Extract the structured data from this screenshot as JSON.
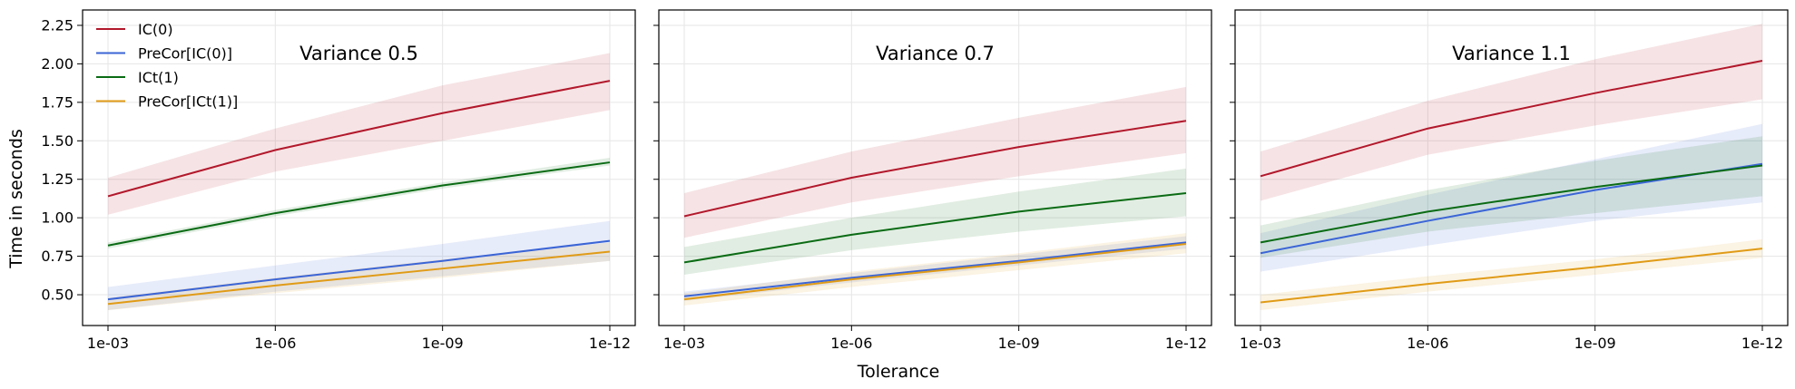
{
  "chart_data": {
    "type": "line",
    "ylabel": "Time in seconds",
    "xlabel": "Tolerance",
    "categories": [
      "1e-03",
      "1e-06",
      "1e-09",
      "1e-12"
    ],
    "ylim": [
      0.3,
      2.35
    ],
    "yticks": [
      "0.50",
      "0.75",
      "1.00",
      "1.25",
      "1.50",
      "1.75",
      "2.00",
      "2.25"
    ],
    "legend": {
      "placement": "top-left of first panel",
      "entries": [
        "IC(0)",
        "PreCor[IC(0)]",
        "ICt(1)",
        "PreCor[ICt(1)]"
      ]
    },
    "colors": {
      "IC(0)": "#b2182b",
      "PreCor[IC(0)]": "#3b65d6",
      "ICt(1)": "#0a6b14",
      "PreCor[ICt(1)]": "#e09b16"
    },
    "panels": [
      {
        "title": "Variance 0.5",
        "series": [
          {
            "name": "IC(0)",
            "values": [
              1.14,
              1.44,
              1.68,
              1.89
            ],
            "lower": [
              1.02,
              1.3,
              1.5,
              1.7
            ],
            "upper": [
              1.26,
              1.58,
              1.86,
              2.07
            ]
          },
          {
            "name": "PreCor[IC(0)]",
            "values": [
              0.47,
              0.6,
              0.72,
              0.85
            ],
            "lower": [
              0.4,
              0.52,
              0.62,
              0.72
            ],
            "upper": [
              0.55,
              0.69,
              0.83,
              0.98
            ]
          },
          {
            "name": "ICt(1)",
            "values": [
              0.82,
              1.03,
              1.21,
              1.36
            ],
            "lower": [
              0.8,
              1.01,
              1.19,
              1.34
            ],
            "upper": [
              0.84,
              1.05,
              1.23,
              1.39
            ]
          },
          {
            "name": "PreCor[ICt(1)]",
            "values": [
              0.44,
              0.56,
              0.67,
              0.78
            ],
            "lower": [
              0.4,
              0.51,
              0.61,
              0.72
            ],
            "upper": [
              0.48,
              0.61,
              0.73,
              0.84
            ]
          }
        ]
      },
      {
        "title": "Variance 0.7",
        "series": [
          {
            "name": "IC(0)",
            "values": [
              1.01,
              1.26,
              1.46,
              1.63
            ],
            "lower": [
              0.87,
              1.1,
              1.27,
              1.42
            ],
            "upper": [
              1.16,
              1.43,
              1.65,
              1.85
            ]
          },
          {
            "name": "PreCor[IC(0)]",
            "values": [
              0.49,
              0.61,
              0.72,
              0.84
            ],
            "lower": [
              0.46,
              0.58,
              0.69,
              0.8
            ],
            "upper": [
              0.52,
              0.64,
              0.76,
              0.88
            ]
          },
          {
            "name": "ICt(1)",
            "values": [
              0.71,
              0.89,
              1.04,
              1.16
            ],
            "lower": [
              0.63,
              0.79,
              0.91,
              1.01
            ],
            "upper": [
              0.81,
              1.0,
              1.17,
              1.32
            ]
          },
          {
            "name": "PreCor[ICt(1)]",
            "values": [
              0.47,
              0.6,
              0.71,
              0.83
            ],
            "lower": [
              0.43,
              0.55,
              0.66,
              0.77
            ],
            "upper": [
              0.51,
              0.65,
              0.77,
              0.9
            ]
          }
        ]
      },
      {
        "title": "Variance 1.1",
        "series": [
          {
            "name": "IC(0)",
            "values": [
              1.27,
              1.58,
              1.81,
              2.02
            ],
            "lower": [
              1.11,
              1.41,
              1.6,
              1.77
            ],
            "upper": [
              1.43,
              1.76,
              2.03,
              2.26
            ]
          },
          {
            "name": "PreCor[IC(0)]",
            "values": [
              0.77,
              0.98,
              1.18,
              1.35
            ],
            "lower": [
              0.65,
              0.82,
              0.98,
              1.1
            ],
            "upper": [
              0.9,
              1.15,
              1.38,
              1.61
            ]
          },
          {
            "name": "ICt(1)",
            "values": [
              0.84,
              1.04,
              1.2,
              1.34
            ],
            "lower": [
              0.74,
              0.91,
              1.03,
              1.14
            ],
            "upper": [
              0.95,
              1.18,
              1.37,
              1.53
            ]
          },
          {
            "name": "PreCor[ICt(1)]",
            "values": [
              0.45,
              0.57,
              0.68,
              0.8
            ],
            "lower": [
              0.4,
              0.52,
              0.63,
              0.74
            ],
            "upper": [
              0.5,
              0.62,
              0.73,
              0.86
            ]
          }
        ]
      }
    ]
  }
}
